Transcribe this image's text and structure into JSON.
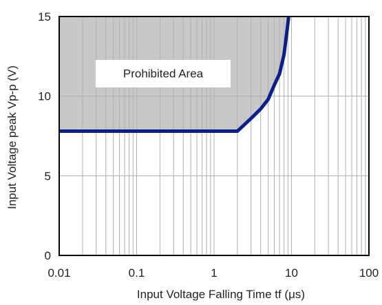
{
  "chart_data": {
    "type": "area",
    "xlabel": "Input Voltage Falling Time tf (μs)",
    "ylabel": "Input Voltage peak Vp-p (V)",
    "xscale": "log",
    "xlim": [
      0.01,
      100
    ],
    "ylim": [
      0,
      15
    ],
    "grid": true,
    "x_ticks": [
      {
        "value": 0.01,
        "label": "0.01"
      },
      {
        "value": 0.1,
        "label": "0.1"
      },
      {
        "value": 1,
        "label": "1"
      },
      {
        "value": 10,
        "label": "10"
      },
      {
        "value": 100,
        "label": "100"
      }
    ],
    "y_ticks": [
      {
        "value": 0,
        "label": "0"
      },
      {
        "value": 5,
        "label": "5"
      },
      {
        "value": 10,
        "label": "10"
      },
      {
        "value": 15,
        "label": "15"
      }
    ],
    "series": [
      {
        "x": [
          0.01,
          2.0,
          3.0,
          4.0,
          5.0,
          6.0,
          7.0,
          8.0,
          8.6,
          9.0,
          9.2
        ],
        "y": [
          7.8,
          7.8,
          8.6,
          9.2,
          9.8,
          10.7,
          11.4,
          12.6,
          13.8,
          14.6,
          15.0
        ]
      }
    ],
    "region": {
      "label": "Prohibited Area",
      "color": "#c8c8c8",
      "bounded_by": "above the curve"
    },
    "colors": {
      "curve": "#0a1f8a",
      "region": "#c8c8c8",
      "grid": "#b0b0b0",
      "frame": "#000000",
      "label_box": "#ffffff"
    }
  }
}
